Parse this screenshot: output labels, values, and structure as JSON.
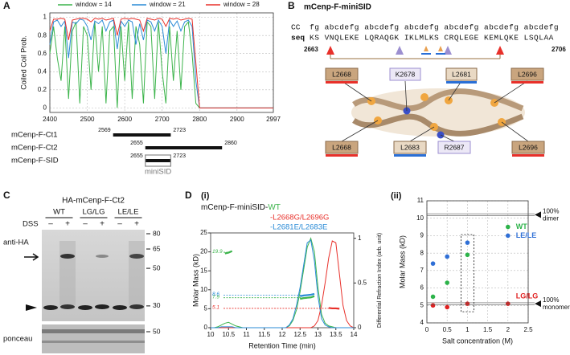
{
  "panels": {
    "a": "A",
    "b": "B",
    "c": "C",
    "d": "D",
    "d1": "(i)",
    "d2": "(ii)"
  },
  "chart_data": [
    {
      "type": "line",
      "ylabel": "Coiled Coil Prob.",
      "x": [
        2400,
        2410,
        2420,
        2430,
        2440,
        2450,
        2460,
        2470,
        2480,
        2490,
        2500,
        2510,
        2520,
        2530,
        2540,
        2550,
        2560,
        2570,
        2580,
        2590,
        2600,
        2610,
        2620,
        2630,
        2640,
        2650,
        2660,
        2670,
        2680,
        2690,
        2700,
        2710,
        2720,
        2730,
        2740,
        2750,
        2760,
        2770,
        2780,
        2790,
        2800,
        2997
      ],
      "xlim": [
        2400,
        2997
      ],
      "xticks": [
        2400,
        2500,
        2600,
        2700,
        2800,
        2900,
        2997
      ],
      "ylim": [
        -0.05,
        1.05
      ],
      "yticks": [
        0,
        0.2,
        0.4,
        0.6,
        0.8,
        1
      ],
      "grid": true,
      "series": [
        {
          "name": "window = 14",
          "color": "#3cb44b",
          "values": [
            0.6,
            0.9,
            0.55,
            0.3,
            0.9,
            0.1,
            0.85,
            0.95,
            0.05,
            0.9,
            0.8,
            0.2,
            0.95,
            0.4,
            0.9,
            0.05,
            0.85,
            0.9,
            0,
            0.9,
            0.3,
            0.95,
            0.1,
            0.9,
            0.7,
            0.05,
            0.95,
            0.9,
            0.1,
            0.95,
            0.4,
            0.05,
            0.9,
            0.3,
            0.85,
            0.2,
            0.9,
            0.95,
            0.6,
            0.05,
            0,
            0
          ]
        },
        {
          "name": "window = 21",
          "color": "#2a8bd6",
          "values": [
            0.7,
            0.95,
            0.97,
            0.9,
            0.96,
            0.55,
            0.95,
            0.93,
            0.98,
            0.97,
            0.9,
            0.75,
            0.96,
            0.93,
            0.97,
            0.85,
            0.95,
            0.97,
            0.65,
            0.96,
            0.9,
            0.97,
            0.95,
            0.7,
            0.93,
            0.75,
            0.97,
            0.95,
            0.85,
            0.97,
            0.9,
            0.6,
            0.97,
            0.9,
            0.96,
            0.85,
            0.95,
            0.97,
            0.9,
            0.3,
            0,
            0
          ]
        },
        {
          "name": "window = 28",
          "color": "#e8302a",
          "values": [
            0.85,
            0.98,
            0.98,
            0.99,
            0.98,
            0.75,
            0.97,
            0.98,
            0.99,
            0.99,
            0.98,
            0.95,
            0.99,
            0.98,
            0.99,
            0.97,
            0.98,
            0.99,
            0.8,
            0.98,
            0.99,
            0.98,
            0.99,
            0.98,
            0.97,
            0.85,
            0.99,
            0.98,
            0.97,
            0.99,
            0.98,
            0.9,
            0.99,
            0.98,
            0.99,
            0.97,
            0.98,
            0.99,
            0.98,
            0.5,
            0,
            0
          ]
        }
      ],
      "constructs": [
        {
          "name": "mCenp-F-Ct1",
          "start": 2569,
          "end": 2723
        },
        {
          "name": "mCenp-F-Ct2",
          "start": 2655,
          "end": 2860
        },
        {
          "name": "mCenp-F-SID",
          "start": 2655,
          "end": 2723
        }
      ],
      "highlight": "miniSID"
    },
    {
      "type": "line",
      "title_prefix": "mCenp-F-miniSID-",
      "xlabel": "Retention Time (min)",
      "ylabel": "Molar Mass (kD)",
      "y2label": "Differential Refraction Index (arb. unit)",
      "x": [
        10,
        10.1,
        10.2,
        10.3,
        10.4,
        10.5,
        10.6,
        10.7,
        10.8,
        10.9,
        11,
        11.1,
        11.2,
        11.3,
        11.4,
        11.5,
        11.6,
        11.7,
        11.8,
        11.9,
        12,
        12.1,
        12.2,
        12.3,
        12.4,
        12.5,
        12.6,
        12.7,
        12.8,
        12.9,
        13,
        13.1,
        13.2,
        13.3,
        13.4,
        13.5,
        13.6,
        13.7,
        13.8,
        13.9,
        14
      ],
      "xlim": [
        10,
        14
      ],
      "xticks": [
        10,
        10.5,
        11,
        11.5,
        12,
        12.5,
        13,
        13.5,
        14
      ],
      "ylim": [
        0,
        25
      ],
      "yticks": [
        0,
        5,
        10,
        15,
        20,
        25
      ],
      "y2lim": [
        0,
        1.06
      ],
      "y2ticks": [
        0,
        0.5,
        1
      ],
      "series": [
        {
          "name": "WT",
          "color": "#3cb44b",
          "axis": "y2",
          "values": [
            0,
            0,
            0.01,
            0.03,
            0.05,
            0.06,
            0.04,
            0.02,
            0.01,
            0,
            0,
            0,
            0,
            0,
            0,
            0,
            0,
            0,
            0,
            0,
            0,
            0,
            0.02,
            0.08,
            0.2,
            0.4,
            0.65,
            0.9,
            1.0,
            0.85,
            0.45,
            0.15,
            0.05,
            0.02,
            0.01,
            0,
            0,
            0,
            0,
            0,
            0
          ],
          "mass_values": [
            null,
            null,
            null,
            null,
            19.6,
            19.8,
            20.2,
            null,
            null,
            null,
            null,
            null,
            null,
            null,
            null,
            null,
            null,
            null,
            null,
            null,
            null,
            null,
            null,
            null,
            null,
            7.6,
            7.8,
            7.9,
            8.0,
            8.3,
            null,
            null,
            null,
            null,
            null,
            null,
            null,
            null,
            null,
            null,
            null
          ],
          "mass_annotations": [
            19.9,
            7.9
          ]
        },
        {
          "name": "-L2668G/L2696G",
          "color": "#e8302a",
          "axis": "y2",
          "values": [
            0,
            0,
            0,
            0,
            0,
            0,
            0,
            0,
            0,
            0,
            0,
            0,
            0,
            0,
            0,
            0,
            0,
            0,
            0,
            0,
            0,
            0,
            0,
            0,
            0,
            0,
            0,
            0,
            0,
            0.02,
            0.08,
            0.25,
            0.5,
            0.78,
            0.97,
            0.95,
            0.6,
            0.25,
            0.08,
            0.02,
            0
          ],
          "mass_values": [
            null,
            null,
            null,
            null,
            null,
            null,
            null,
            null,
            null,
            null,
            null,
            null,
            null,
            null,
            null,
            null,
            null,
            null,
            null,
            null,
            null,
            null,
            null,
            null,
            null,
            null,
            null,
            null,
            null,
            null,
            null,
            null,
            null,
            5.2,
            5.1,
            5.1,
            5.0,
            null,
            null,
            null,
            null
          ],
          "mass_annotations": [
            5.1
          ]
        },
        {
          "name": "-L2681E/L2683E",
          "color": "#2a8bd6",
          "axis": "y2",
          "values": [
            0,
            0,
            0,
            0.01,
            0.01,
            0.01,
            0.01,
            0,
            0,
            0,
            0,
            0,
            0,
            0,
            0,
            0,
            0,
            0,
            0,
            0,
            0,
            0,
            0.03,
            0.1,
            0.25,
            0.45,
            0.7,
            0.95,
            0.98,
            0.75,
            0.35,
            0.1,
            0.03,
            0.01,
            0,
            0,
            0,
            0,
            0,
            0,
            0
          ],
          "mass_values": [
            null,
            null,
            null,
            null,
            null,
            null,
            null,
            null,
            null,
            null,
            null,
            null,
            null,
            null,
            null,
            null,
            null,
            null,
            null,
            null,
            null,
            null,
            null,
            null,
            null,
            8.3,
            8.5,
            8.6,
            8.7,
            8.9,
            null,
            null,
            null,
            null,
            null,
            null,
            null,
            null,
            null,
            null,
            null
          ],
          "mass_annotations": [
            8.6
          ]
        }
      ]
    },
    {
      "type": "scatter",
      "xlabel": "Salt concentration (M)",
      "ylabel": "Molar Mass (kD)",
      "xlim": [
        0,
        2.5
      ],
      "xticks": [
        0,
        0.5,
        1,
        1.5,
        2,
        2.5
      ],
      "ylim": [
        4,
        11
      ],
      "yticks": [
        4,
        5,
        6,
        7,
        8,
        9,
        10,
        11
      ],
      "grid": true,
      "series": [
        {
          "name": "WT",
          "color": "#2db34a",
          "x": [
            0.15,
            0.5,
            1,
            2
          ],
          "values": [
            5.5,
            6.3,
            7.9,
            9.5
          ]
        },
        {
          "name": "LE/LE",
          "color": "#2f6fd6",
          "x": [
            0.15,
            0.5,
            1,
            2
          ],
          "values": [
            7.4,
            7.8,
            8.6,
            9.0
          ]
        },
        {
          "name": "LG/LG",
          "color": "#e02020",
          "x": [
            0.15,
            0.5,
            1,
            2
          ],
          "values": [
            5.0,
            4.9,
            5.1,
            5.1
          ]
        }
      ],
      "references": [
        {
          "value": 10.2,
          "label": [
            "100%",
            "dimer"
          ]
        },
        {
          "value": 5.1,
          "label": [
            "100%",
            "monomer"
          ]
        }
      ]
    }
  ],
  "structure": {
    "title": "mCenp-F-miniSID",
    "register_label": "CC",
    "register": "fg abcdefg abcdefg abcdefg abcdefg abcdefg abcdefg",
    "seq_label": "seq",
    "sequence": "KS VNQLEKE LQRAQGK IKLMLKS CRQLEGE KEMLQKE LSQLAA",
    "start": "2663",
    "end": "2706",
    "top_residues": [
      "L2668",
      "K2678",
      "L2681",
      "L2696"
    ],
    "bottom_residues": [
      "L2668",
      "L2683",
      "R2687",
      "L2696"
    ]
  },
  "blot": {
    "title": "HA-mCenp-F-Ct2",
    "groups": [
      "WT",
      "LG/LG",
      "LE/LE"
    ],
    "treatment": "DSS",
    "lanes": [
      "–",
      "+",
      "–",
      "+",
      "–",
      "+"
    ],
    "antibody": "anti-HA",
    "markers": [
      80,
      65,
      50,
      30
    ],
    "loading": "ponceau",
    "loading_markers": [
      50
    ]
  }
}
